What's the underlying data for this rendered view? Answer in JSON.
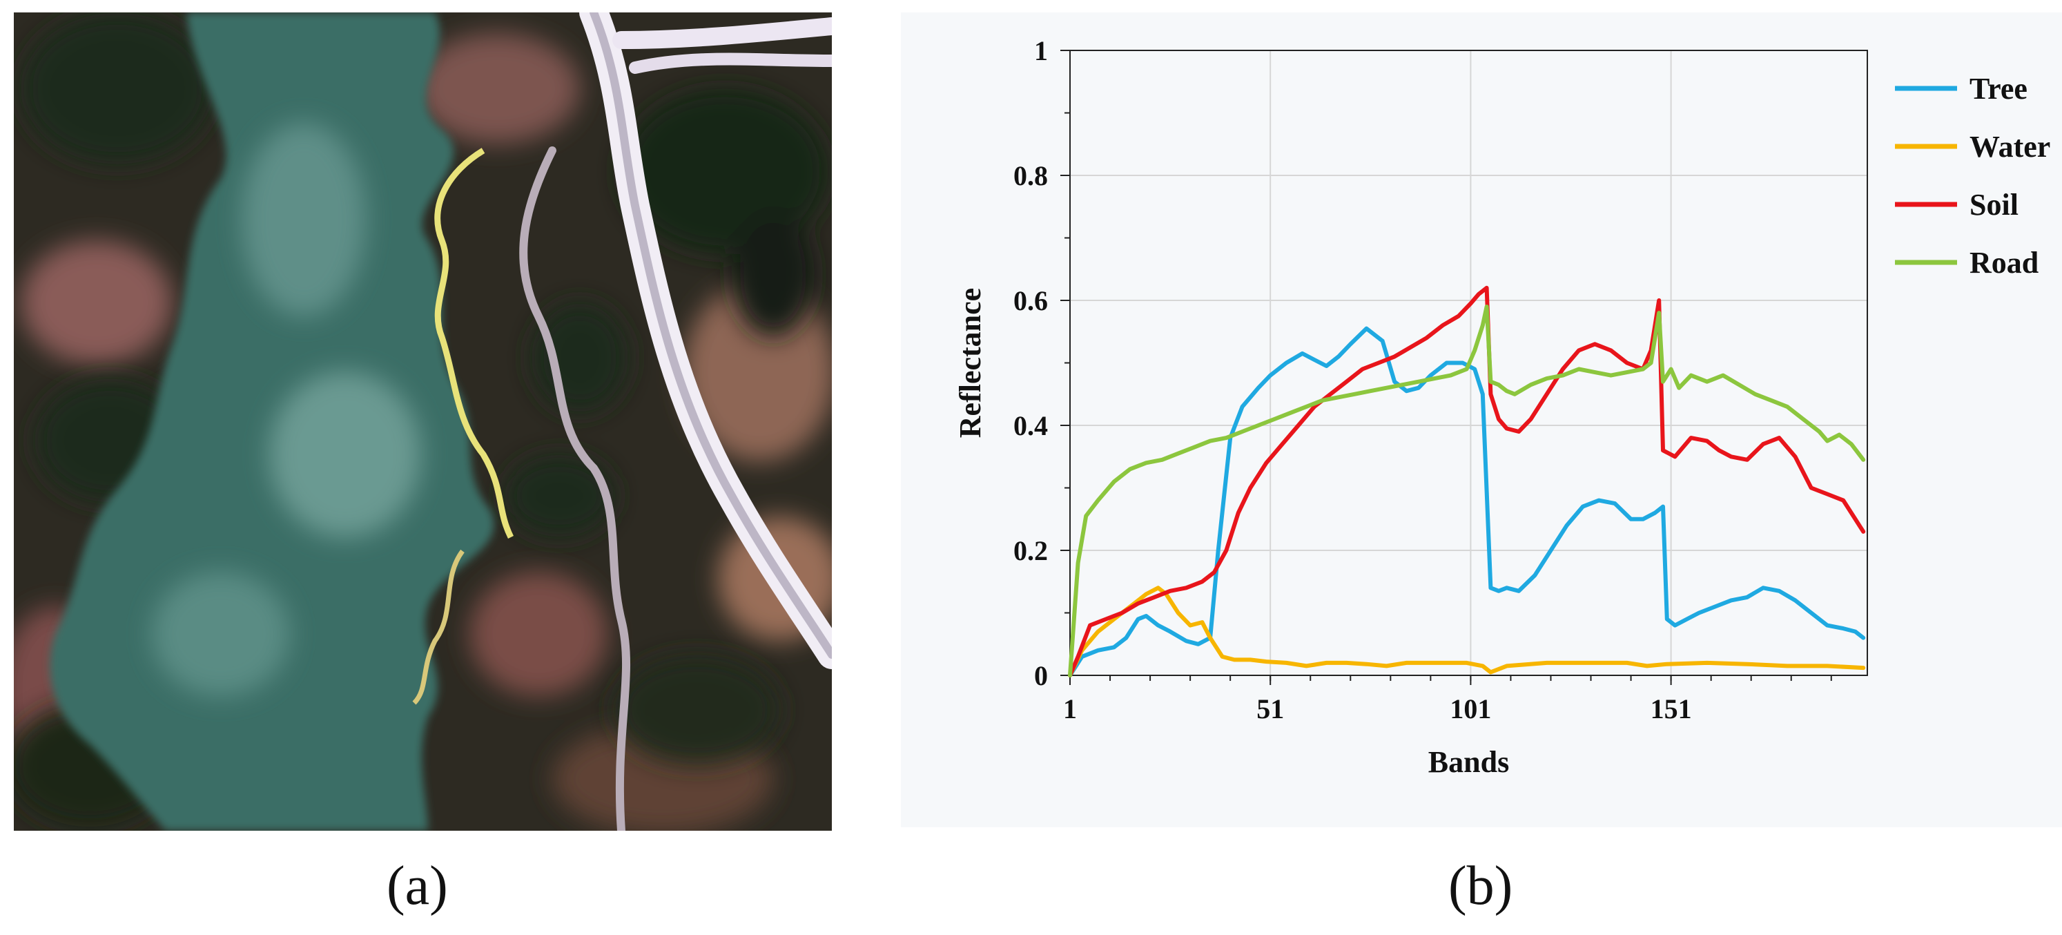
{
  "captions": {
    "a": "(a)",
    "b": "(b)"
  },
  "scene": {
    "palette": {
      "water": "#3b6e66",
      "water_light": "#6a9a92",
      "bank_dark": "#2a2a22",
      "vegetation": "#1f3322",
      "soil_pink": "#8a5c58",
      "road": "#d9d3e0",
      "edge_yellow": "#e8e27a"
    }
  },
  "chart_data": {
    "type": "line",
    "xlabel": "Bands",
    "ylabel": "Reflectance",
    "xlim": [
      1,
      200
    ],
    "ylim": [
      0,
      1
    ],
    "xticks": [
      1,
      51,
      101,
      151
    ],
    "yticks": [
      0,
      0.2,
      0.4,
      0.6,
      0.8,
      1
    ],
    "ytick_labels": [
      "0",
      "0.2",
      "0.4",
      "0.6",
      "0.8",
      "1"
    ],
    "grid": true,
    "legend_position": "right",
    "series": [
      {
        "name": "Tree",
        "color": "#1fa9e1",
        "points": [
          [
            1,
            0
          ],
          [
            4,
            0.03
          ],
          [
            8,
            0.04
          ],
          [
            12,
            0.045
          ],
          [
            15,
            0.06
          ],
          [
            18,
            0.09
          ],
          [
            20,
            0.095
          ],
          [
            23,
            0.08
          ],
          [
            26,
            0.07
          ],
          [
            30,
            0.055
          ],
          [
            33,
            0.05
          ],
          [
            36,
            0.06
          ],
          [
            38,
            0.2
          ],
          [
            41,
            0.38
          ],
          [
            44,
            0.43
          ],
          [
            48,
            0.46
          ],
          [
            51,
            0.48
          ],
          [
            55,
            0.5
          ],
          [
            59,
            0.515
          ],
          [
            62,
            0.505
          ],
          [
            65,
            0.495
          ],
          [
            68,
            0.51
          ],
          [
            71,
            0.53
          ],
          [
            75,
            0.555
          ],
          [
            79,
            0.535
          ],
          [
            82,
            0.47
          ],
          [
            85,
            0.455
          ],
          [
            88,
            0.46
          ],
          [
            91,
            0.48
          ],
          [
            95,
            0.5
          ],
          [
            99,
            0.5
          ],
          [
            102,
            0.49
          ],
          [
            104,
            0.45
          ],
          [
            106,
            0.14
          ],
          [
            108,
            0.135
          ],
          [
            110,
            0.14
          ],
          [
            113,
            0.135
          ],
          [
            117,
            0.16
          ],
          [
            121,
            0.2
          ],
          [
            125,
            0.24
          ],
          [
            129,
            0.27
          ],
          [
            133,
            0.28
          ],
          [
            137,
            0.275
          ],
          [
            141,
            0.25
          ],
          [
            144,
            0.25
          ],
          [
            147,
            0.26
          ],
          [
            149,
            0.27
          ],
          [
            150,
            0.09
          ],
          [
            152,
            0.08
          ],
          [
            155,
            0.09
          ],
          [
            158,
            0.1
          ],
          [
            162,
            0.11
          ],
          [
            166,
            0.12
          ],
          [
            170,
            0.125
          ],
          [
            174,
            0.14
          ],
          [
            178,
            0.135
          ],
          [
            182,
            0.12
          ],
          [
            186,
            0.1
          ],
          [
            190,
            0.08
          ],
          [
            194,
            0.075
          ],
          [
            197,
            0.07
          ],
          [
            199,
            0.06
          ]
        ]
      },
      {
        "name": "Water",
        "color": "#f7b500",
        "points": [
          [
            1,
            0
          ],
          [
            4,
            0.04
          ],
          [
            8,
            0.07
          ],
          [
            12,
            0.09
          ],
          [
            16,
            0.11
          ],
          [
            20,
            0.13
          ],
          [
            23,
            0.14
          ],
          [
            25,
            0.13
          ],
          [
            28,
            0.1
          ],
          [
            31,
            0.08
          ],
          [
            34,
            0.085
          ],
          [
            36,
            0.06
          ],
          [
            39,
            0.03
          ],
          [
            42,
            0.025
          ],
          [
            46,
            0.025
          ],
          [
            50,
            0.022
          ],
          [
            55,
            0.02
          ],
          [
            60,
            0.015
          ],
          [
            65,
            0.02
          ],
          [
            70,
            0.02
          ],
          [
            75,
            0.018
          ],
          [
            80,
            0.015
          ],
          [
            85,
            0.02
          ],
          [
            90,
            0.02
          ],
          [
            95,
            0.02
          ],
          [
            100,
            0.02
          ],
          [
            104,
            0.015
          ],
          [
            106,
            0.005
          ],
          [
            110,
            0.015
          ],
          [
            120,
            0.02
          ],
          [
            130,
            0.02
          ],
          [
            140,
            0.02
          ],
          [
            145,
            0.015
          ],
          [
            150,
            0.018
          ],
          [
            160,
            0.02
          ],
          [
            170,
            0.018
          ],
          [
            180,
            0.015
          ],
          [
            190,
            0.015
          ],
          [
            199,
            0.012
          ]
        ]
      },
      {
        "name": "Soil",
        "color": "#e8151b",
        "points": [
          [
            1,
            0
          ],
          [
            3,
            0.03
          ],
          [
            6,
            0.08
          ],
          [
            10,
            0.09
          ],
          [
            14,
            0.1
          ],
          [
            18,
            0.115
          ],
          [
            22,
            0.125
          ],
          [
            26,
            0.135
          ],
          [
            30,
            0.14
          ],
          [
            34,
            0.15
          ],
          [
            37,
            0.165
          ],
          [
            40,
            0.2
          ],
          [
            43,
            0.26
          ],
          [
            46,
            0.3
          ],
          [
            50,
            0.34
          ],
          [
            54,
            0.37
          ],
          [
            58,
            0.4
          ],
          [
            62,
            0.43
          ],
          [
            66,
            0.45
          ],
          [
            70,
            0.47
          ],
          [
            74,
            0.49
          ],
          [
            78,
            0.5
          ],
          [
            82,
            0.51
          ],
          [
            86,
            0.525
          ],
          [
            90,
            0.54
          ],
          [
            94,
            0.56
          ],
          [
            98,
            0.575
          ],
          [
            101,
            0.595
          ],
          [
            103,
            0.61
          ],
          [
            105,
            0.62
          ],
          [
            106,
            0.45
          ],
          [
            108,
            0.41
          ],
          [
            110,
            0.395
          ],
          [
            113,
            0.39
          ],
          [
            116,
            0.41
          ],
          [
            120,
            0.45
          ],
          [
            124,
            0.49
          ],
          [
            128,
            0.52
          ],
          [
            132,
            0.53
          ],
          [
            136,
            0.52
          ],
          [
            140,
            0.5
          ],
          [
            144,
            0.49
          ],
          [
            146,
            0.52
          ],
          [
            148,
            0.6
          ],
          [
            149,
            0.36
          ],
          [
            152,
            0.35
          ],
          [
            156,
            0.38
          ],
          [
            160,
            0.375
          ],
          [
            163,
            0.36
          ],
          [
            166,
            0.35
          ],
          [
            170,
            0.345
          ],
          [
            174,
            0.37
          ],
          [
            178,
            0.38
          ],
          [
            182,
            0.35
          ],
          [
            186,
            0.3
          ],
          [
            190,
            0.29
          ],
          [
            194,
            0.28
          ],
          [
            197,
            0.25
          ],
          [
            199,
            0.23
          ]
        ]
      },
      {
        "name": "Road",
        "color": "#8cc63e",
        "points": [
          [
            1,
            0
          ],
          [
            3,
            0.18
          ],
          [
            5,
            0.255
          ],
          [
            8,
            0.28
          ],
          [
            12,
            0.31
          ],
          [
            16,
            0.33
          ],
          [
            20,
            0.34
          ],
          [
            24,
            0.345
          ],
          [
            28,
            0.355
          ],
          [
            32,
            0.365
          ],
          [
            36,
            0.375
          ],
          [
            40,
            0.38
          ],
          [
            44,
            0.39
          ],
          [
            48,
            0.4
          ],
          [
            52,
            0.41
          ],
          [
            56,
            0.42
          ],
          [
            60,
            0.43
          ],
          [
            64,
            0.44
          ],
          [
            68,
            0.445
          ],
          [
            72,
            0.45
          ],
          [
            76,
            0.455
          ],
          [
            80,
            0.46
          ],
          [
            84,
            0.465
          ],
          [
            88,
            0.47
          ],
          [
            92,
            0.475
          ],
          [
            96,
            0.48
          ],
          [
            100,
            0.49
          ],
          [
            102,
            0.52
          ],
          [
            104,
            0.56
          ],
          [
            105,
            0.59
          ],
          [
            106,
            0.47
          ],
          [
            108,
            0.465
          ],
          [
            110,
            0.455
          ],
          [
            112,
            0.45
          ],
          [
            116,
            0.465
          ],
          [
            120,
            0.475
          ],
          [
            124,
            0.48
          ],
          [
            128,
            0.49
          ],
          [
            132,
            0.485
          ],
          [
            136,
            0.48
          ],
          [
            140,
            0.485
          ],
          [
            144,
            0.49
          ],
          [
            146,
            0.5
          ],
          [
            148,
            0.58
          ],
          [
            149,
            0.47
          ],
          [
            151,
            0.49
          ],
          [
            153,
            0.46
          ],
          [
            156,
            0.48
          ],
          [
            160,
            0.47
          ],
          [
            164,
            0.48
          ],
          [
            168,
            0.465
          ],
          [
            172,
            0.45
          ],
          [
            176,
            0.44
          ],
          [
            180,
            0.43
          ],
          [
            184,
            0.41
          ],
          [
            188,
            0.39
          ],
          [
            190,
            0.375
          ],
          [
            193,
            0.385
          ],
          [
            196,
            0.37
          ],
          [
            199,
            0.345
          ]
        ]
      }
    ]
  }
}
